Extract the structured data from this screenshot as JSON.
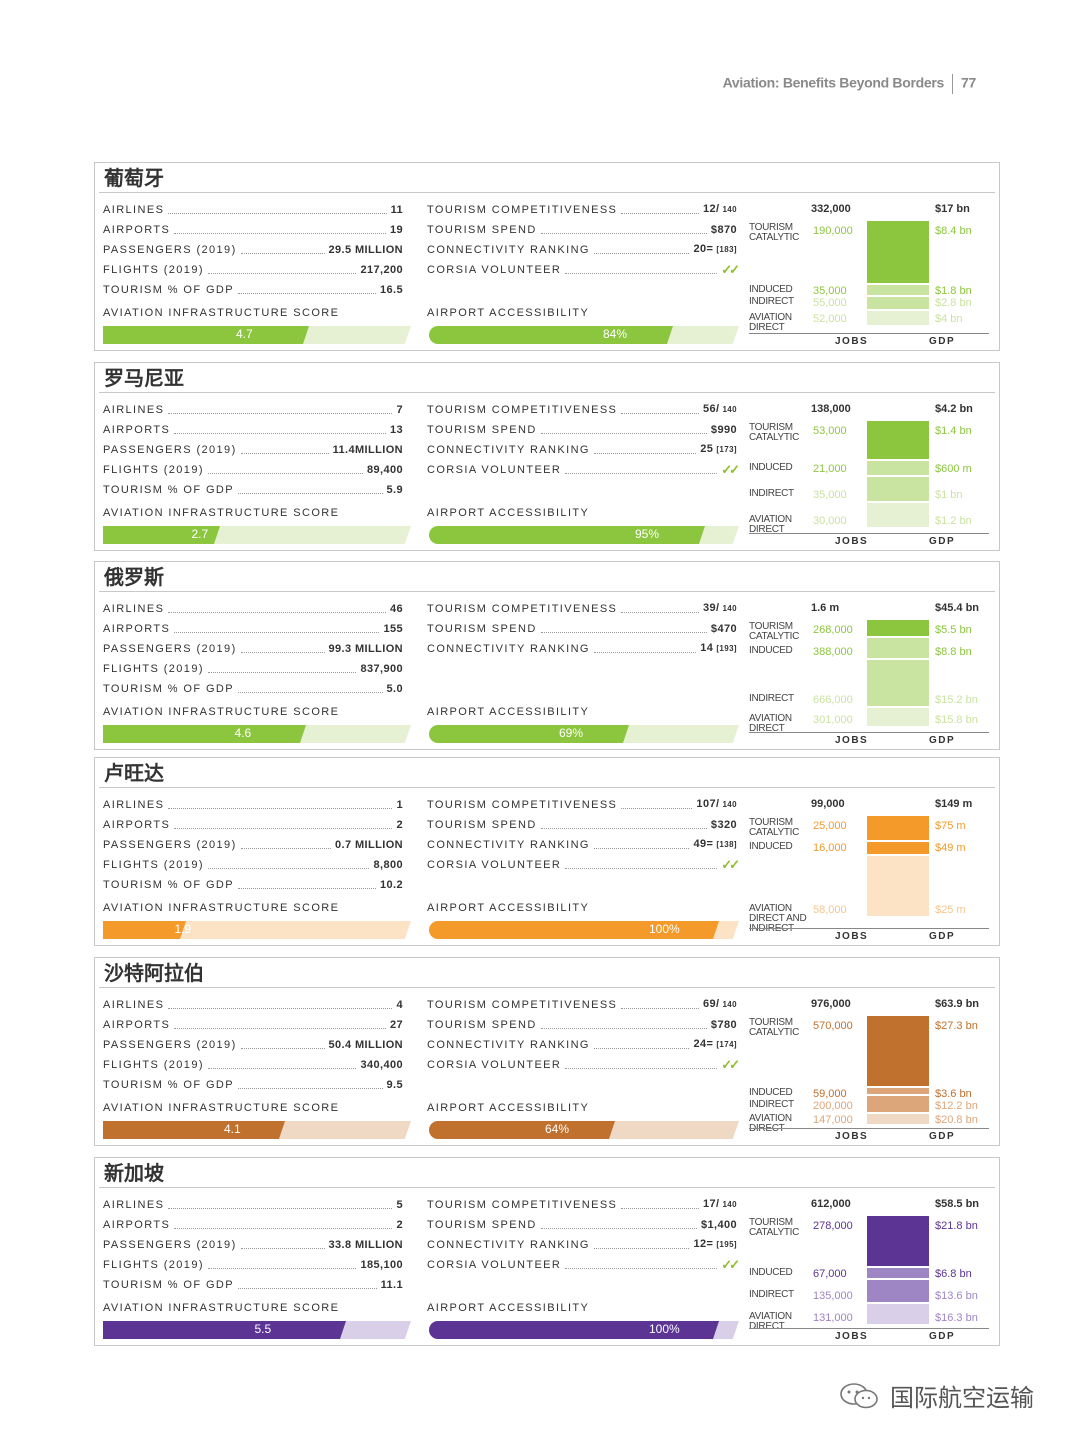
{
  "header": {
    "title": "Aviation: Benefits Beyond Borders",
    "page": "77"
  },
  "labels": {
    "airlines": "AIRLINES",
    "airports": "AIRPORTS",
    "passengers": "PASSENGERS (2019)",
    "flights": "FLIGHTS (2019)",
    "tourism_gdp": "TOURISM % OF GDP",
    "infra": "AVIATION INFRASTRUCTURE SCORE",
    "tour_comp": "TOURISM COMPETITIVENESS",
    "tour_spend": "TOURISM SPEND",
    "conn": "CONNECTIVITY RANKING",
    "corsia": "CORSIA VOLUNTEER",
    "access": "AIRPORT ACCESSIBILITY",
    "jobs": "JOBS",
    "gdp": "GDP",
    "tourism_catalytic": "TOURISM CATALYTIC",
    "induced": "INDUCED",
    "indirect": "INDIRECT",
    "aviation_direct": "AVIATION DIRECT",
    "direct_indirect": "AVIATION DIRECT AND INDIRECT",
    "check": "✓✓"
  },
  "countries": [
    {
      "name": "葡萄牙",
      "color": "#8cc63f",
      "light": "#c9e3a0",
      "lighter": "#e6f1d4",
      "airlines": "11",
      "airports": "19",
      "passengers": "29.5 MILLION",
      "flights": "217,200",
      "tourism_gdp": "16.5",
      "infra_score": "4.7",
      "infra_fraction": 0.67,
      "tour_comp": "12/",
      "tour_comp_of": "140",
      "tour_spend": "$870",
      "conn": "20=",
      "conn_of": "[183]",
      "corsia": true,
      "access": "84%",
      "access_fraction": 0.84,
      "jobs_total": "332,000",
      "gdp_total": "$17 bn",
      "tc_jobs": "190,000",
      "tc_gdp": "$8.4 bn",
      "ind_jobs": "35,000",
      "ind_gdp": "$1.8 bn",
      "indir_jobs": "55,000",
      "indir_gdp": "$2.8 bn",
      "dir_jobs": "52,000",
      "dir_gdp": "$4 bn"
    },
    {
      "name": "罗马尼亚",
      "color": "#8cc63f",
      "light": "#c9e3a0",
      "lighter": "#e6f1d4",
      "airlines": "7",
      "airports": "13",
      "passengers": "11.4MILLION",
      "flights": "89,400",
      "tourism_gdp": "5.9",
      "infra_score": "2.7",
      "infra_fraction": 0.38,
      "tour_comp": "56/",
      "tour_comp_of": "140",
      "tour_spend": "$990",
      "conn": "25",
      "conn_of": "[173]",
      "corsia": true,
      "access": "95%",
      "access_fraction": 0.95,
      "jobs_total": "138,000",
      "gdp_total": "$4.2 bn",
      "tc_jobs": "53,000",
      "tc_gdp": "$1.4 bn",
      "ind_jobs": "21,000",
      "ind_gdp": "$600 m",
      "indir_jobs": "35,000",
      "indir_gdp": "$1 bn",
      "dir_jobs": "30,000",
      "dir_gdp": "$1.2 bn"
    },
    {
      "name": "俄罗斯",
      "color": "#8cc63f",
      "light": "#c9e3a0",
      "lighter": "#e6f1d4",
      "airlines": "46",
      "airports": "155",
      "passengers": "99.3 MILLION",
      "flights": "837,900",
      "tourism_gdp": "5.0",
      "infra_score": "4.6",
      "infra_fraction": 0.66,
      "tour_comp": "39/",
      "tour_comp_of": "140",
      "tour_spend": "$470",
      "conn": "14",
      "conn_of": "[193]",
      "corsia": false,
      "access": "69%",
      "access_fraction": 0.69,
      "jobs_total": "1.6 m",
      "gdp_total": "$45.4 bn",
      "tc_jobs": "268,000",
      "tc_gdp": "$5.5 bn",
      "ind_jobs": "388,000",
      "ind_gdp": "$8.8 bn",
      "indir_jobs": "666,000",
      "indir_gdp": "$15.2 bn",
      "dir_jobs": "301,000",
      "dir_gdp": "$15.8 bn"
    },
    {
      "name": "卢旺达",
      "color": "#f39a2b",
      "light": "#f9c48a",
      "lighter": "#fde3c6",
      "airlines": "1",
      "airports": "2",
      "passengers": "0.7 MILLION",
      "flights": "8,800",
      "tourism_gdp": "10.2",
      "infra_score": "1.9",
      "infra_fraction": 0.27,
      "tour_comp": "107/",
      "tour_comp_of": "140",
      "tour_spend": "$320",
      "conn": "49=",
      "conn_of": "[138]",
      "corsia": true,
      "access": "100%",
      "access_fraction": 1.0,
      "jobs_total": "99,000",
      "gdp_total": "$149 m",
      "tc_jobs": "25,000",
      "tc_gdp": "$75 m",
      "ind_jobs": "16,000",
      "ind_gdp": "$49 m",
      "dir_jobs": "58,000",
      "dir_gdp": "$25 m"
    },
    {
      "name": "沙特阿拉伯",
      "color": "#c0712e",
      "light": "#dca67a",
      "lighter": "#f0d9c4",
      "airlines": "4",
      "airports": "27",
      "passengers": "50.4 MILLION",
      "flights": "340,400",
      "tourism_gdp": "9.5",
      "infra_score": "4.1",
      "infra_fraction": 0.59,
      "tour_comp": "69/",
      "tour_comp_of": "140",
      "tour_spend": "$780",
      "conn": "24=",
      "conn_of": "[174]",
      "corsia": true,
      "access": "64%",
      "access_fraction": 0.64,
      "jobs_total": "976,000",
      "gdp_total": "$63.9 bn",
      "tc_jobs": "570,000",
      "tc_gdp": "$27.3 bn",
      "ind_jobs": "59,000",
      "ind_gdp": "$3.6 bn",
      "indir_jobs": "200,000",
      "indir_gdp": "$12.2 bn",
      "dir_jobs": "147,000",
      "dir_gdp": "$20.8 bn"
    },
    {
      "name": "新加坡",
      "color": "#5b3494",
      "light": "#9e85c4",
      "lighter": "#d9cfe9",
      "airlines": "5",
      "airports": "2",
      "passengers": "33.8 MILLION",
      "flights": "185,100",
      "tourism_gdp": "11.1",
      "infra_score": "5.5",
      "infra_fraction": 0.79,
      "tour_comp": "17/",
      "tour_comp_of": "140",
      "tour_spend": "$1,400",
      "conn": "12=",
      "conn_of": "[195]",
      "corsia": true,
      "access": "100%",
      "access_fraction": 1.0,
      "jobs_total": "612,000",
      "gdp_total": "$58.5 bn",
      "tc_jobs": "278,000",
      "tc_gdp": "$21.8 bn",
      "ind_jobs": "67,000",
      "ind_gdp": "$6.8 bn",
      "indir_jobs": "135,000",
      "indir_gdp": "$13.6 bn",
      "dir_jobs": "131,000",
      "dir_gdp": "$16.3 bn"
    }
  ],
  "watermark": {
    "text": "国际航空运输"
  }
}
